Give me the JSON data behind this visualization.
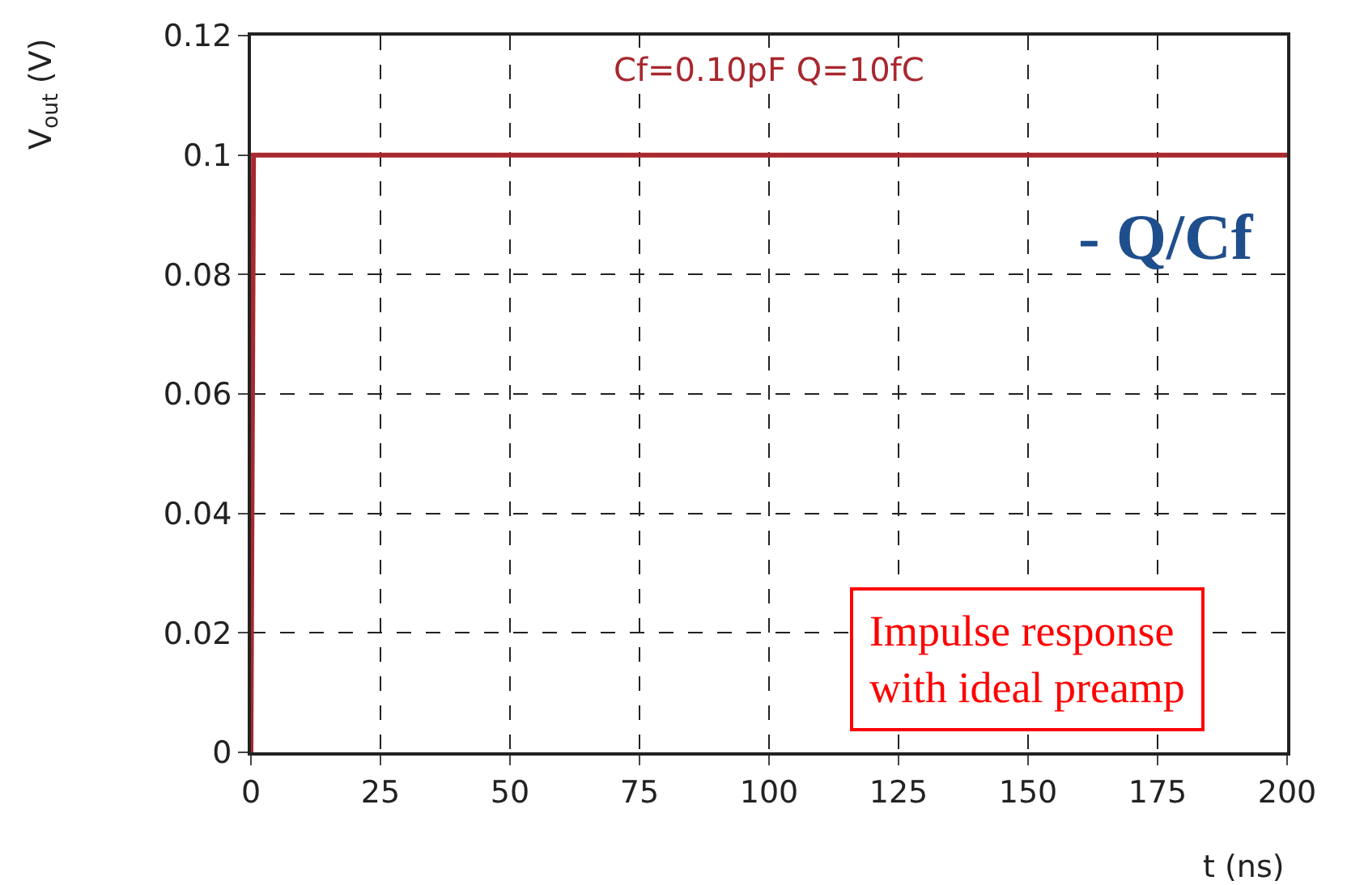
{
  "chart_data": {
    "type": "line",
    "title": "Cf=0.10pF Q=10fC",
    "xlabel": "t (ns)",
    "ylabel": "V$_{out}$ (V)",
    "x": [
      0,
      0.5,
      200
    ],
    "series": [
      {
        "color": "#a8282e",
        "values": [
          0,
          0.1,
          0.1
        ]
      }
    ],
    "xlim": [
      0,
      200
    ],
    "xticks": [
      0,
      25,
      50,
      75,
      100,
      125,
      150,
      175,
      200
    ],
    "ylim": [
      0,
      0.12
    ],
    "yticks": [
      0,
      0.02,
      0.04,
      0.06,
      0.08,
      0.1,
      0.12
    ],
    "grid": true,
    "line_style": "solid",
    "marker": "none",
    "annotations": [
      "- Q/Cf",
      "Impulse response\nwith ideal preamp"
    ]
  }
}
